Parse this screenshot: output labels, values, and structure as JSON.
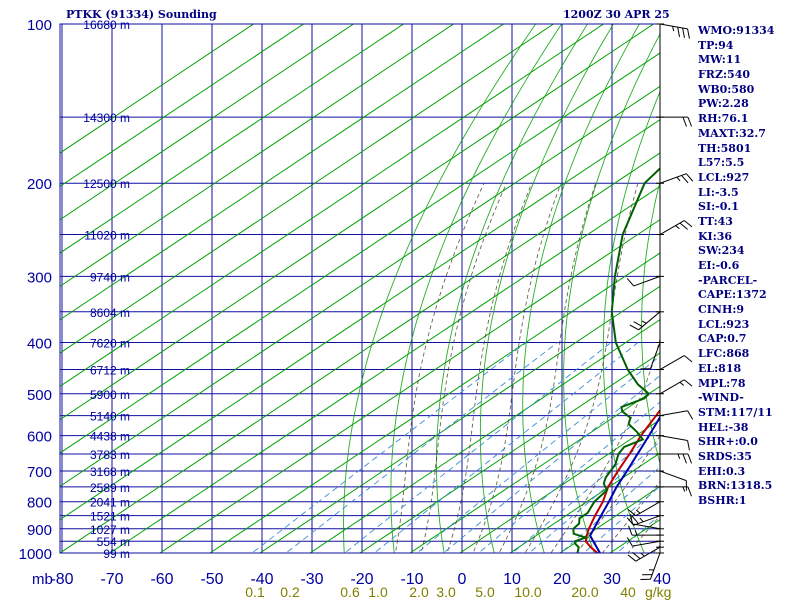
{
  "header": {
    "station": "PTKK (91334) Sounding",
    "time": "1200Z 30 APR 25"
  },
  "indices": [
    "WMO:91334",
    "TP:94",
    "MW:11",
    "FRZ:540",
    "WB0:580",
    "PW:2.28",
    "RH:76.1",
    "MAXT:32.7",
    "TH:5801",
    "L57:5.5",
    "LCL:927",
    "LI:-3.5",
    "SI:-0.1",
    "TT:43",
    "KI:36",
    "SW:234",
    "EI:-0.6",
    "-PARCEL-",
    "CAPE:1372",
    "CINH:9",
    "LCL:923",
    "CAP:0.7",
    "LFC:868",
    "EL:818",
    "MPL:78",
    "-WIND-",
    "STM:117/11",
    "HEL:-38",
    "SHR+:0.0",
    "SRDS:35",
    "EHI:0.3",
    "BRN:1318.5",
    "BSHR:1"
  ],
  "chart_data": {
    "type": "line",
    "chart_kind": "skew-T log-P sounding",
    "xlabel": "",
    "ylabel": "mb",
    "pressure_axis": {
      "scale": "log",
      "range": [
        1000,
        100
      ],
      "ticks": [
        "100",
        "200",
        "300",
        "400",
        "500",
        "600",
        "700",
        "800",
        "900",
        "1000"
      ]
    },
    "temperature_axis": {
      "unit": "°C",
      "range": [
        -80,
        40
      ],
      "ticks": [
        "-80",
        "-70",
        "-60",
        "-50",
        "-40",
        "-30",
        "-20",
        "-10",
        "0",
        "10",
        "20",
        "30",
        "40"
      ]
    },
    "mixing_ratio_axis": {
      "unit": "g/kg",
      "ticks": [
        "0.1",
        "0.2",
        "0.6",
        "1.0",
        "2.0",
        "3.0",
        "5.0",
        "10.0",
        "20.0"
      ]
    },
    "height_labels": [
      {
        "p": 100,
        "label": "16680 m"
      },
      {
        "p": 150,
        "label": "14300 m"
      },
      {
        "p": 200,
        "label": "12500 m"
      },
      {
        "p": 250,
        "label": "11020 m"
      },
      {
        "p": 300,
        "label": "9740 m"
      },
      {
        "p": 350,
        "label": "8604 m"
      },
      {
        "p": 400,
        "label": "7620 m"
      },
      {
        "p": 450,
        "label": "6712 m"
      },
      {
        "p": 500,
        "label": "5900 m"
      },
      {
        "p": 550,
        "label": "5140 m"
      },
      {
        "p": 600,
        "label": "4438 m"
      },
      {
        "p": 650,
        "label": "3783 m"
      },
      {
        "p": 700,
        "label": "3168 m"
      },
      {
        "p": 750,
        "label": "2589 m"
      },
      {
        "p": 800,
        "label": "2041 m"
      },
      {
        "p": 850,
        "label": "1521 m"
      },
      {
        "p": 900,
        "label": "1027 m"
      },
      {
        "p": 950,
        "label": "554 m"
      },
      {
        "p": 1000,
        "label": "99 m"
      }
    ],
    "series": [
      {
        "key": "temperature",
        "color": "#c00000",
        "points": [
          {
            "p": 1000,
            "t": 27.5
          },
          {
            "p": 975,
            "t": 24.4
          },
          {
            "p": 950,
            "t": 21.6
          },
          {
            "p": 925,
            "t": 20.0
          },
          {
            "p": 900,
            "t": 18.5
          },
          {
            "p": 850,
            "t": 15.8
          },
          {
            "p": 800,
            "t": 13.2
          },
          {
            "p": 750,
            "t": 9.8
          },
          {
            "p": 700,
            "t": 7.0
          },
          {
            "p": 650,
            "t": 4.2
          },
          {
            "p": 600,
            "t": 1.0
          },
          {
            "p": 550,
            "t": -2.0
          },
          {
            "p": 500,
            "t": -5.2
          },
          {
            "p": 450,
            "t": -9.5
          },
          {
            "p": 400,
            "t": -14.5
          },
          {
            "p": 350,
            "t": -20.0
          },
          {
            "p": 300,
            "t": -27.0
          },
          {
            "p": 250,
            "t": -37.0
          },
          {
            "p": 200,
            "t": -50.0
          },
          {
            "p": 150,
            "t": -65.0
          },
          {
            "p": 100,
            "t": -82.0
          }
        ]
      },
      {
        "key": "dewpoint",
        "color": "#006000",
        "points": [
          {
            "p": 1000,
            "t": 23.5
          },
          {
            "p": 975,
            "t": 22.0
          },
          {
            "p": 960,
            "t": 20.2
          },
          {
            "p": 950,
            "t": 19.5
          },
          {
            "p": 935,
            "t": 20.5
          },
          {
            "p": 920,
            "t": 17.0
          },
          {
            "p": 900,
            "t": 15.4
          },
          {
            "p": 880,
            "t": 15.0
          },
          {
            "p": 860,
            "t": 13.5
          },
          {
            "p": 840,
            "t": 13.5
          },
          {
            "p": 800,
            "t": 11.5
          },
          {
            "p": 760,
            "t": 10.5
          },
          {
            "p": 740,
            "t": 8.0
          },
          {
            "p": 720,
            "t": 6.5
          },
          {
            "p": 700,
            "t": 5.5
          },
          {
            "p": 680,
            "t": 4.5
          },
          {
            "p": 650,
            "t": 2.0
          },
          {
            "p": 630,
            "t": 1.0
          },
          {
            "p": 610,
            "t": 2.5
          },
          {
            "p": 590,
            "t": -1.0
          },
          {
            "p": 580,
            "t": -3.0
          },
          {
            "p": 570,
            "t": -5.0
          },
          {
            "p": 555,
            "t": -6.5
          },
          {
            "p": 540,
            "t": -10.0
          },
          {
            "p": 530,
            "t": -11.5
          },
          {
            "p": 510,
            "t": -9.5
          },
          {
            "p": 500,
            "t": -10.0
          },
          {
            "p": 480,
            "t": -15.0
          },
          {
            "p": 450,
            "t": -21.5
          },
          {
            "p": 400,
            "t": -32.0
          },
          {
            "p": 350,
            "t": -42.0
          },
          {
            "p": 300,
            "t": -52.0
          },
          {
            "p": 250,
            "t": -63.0
          },
          {
            "p": 200,
            "t": -74.0
          },
          {
            "p": 150,
            "t": -80.0
          },
          {
            "p": 120,
            "t": -85.0
          }
        ]
      },
      {
        "key": "parcel",
        "color": "#0000b0",
        "points": [
          {
            "p": 1000,
            "t": 28.0
          },
          {
            "p": 927,
            "t": 20.8
          },
          {
            "p": 900,
            "t": 19.5
          },
          {
            "p": 850,
            "t": 17.0
          },
          {
            "p": 800,
            "t": 14.4
          },
          {
            "p": 750,
            "t": 11.5
          },
          {
            "p": 700,
            "t": 8.8
          },
          {
            "p": 650,
            "t": 5.8
          },
          {
            "p": 600,
            "t": 2.6
          },
          {
            "p": 550,
            "t": -1.0
          },
          {
            "p": 500,
            "t": -4.6
          },
          {
            "p": 450,
            "t": -8.8
          },
          {
            "p": 400,
            "t": -13.6
          },
          {
            "p": 350,
            "t": -19.0
          },
          {
            "p": 300,
            "t": -26.0
          },
          {
            "p": 250,
            "t": -35.0
          },
          {
            "p": 200,
            "t": -49.0
          },
          {
            "p": 150,
            "t": -67.0
          },
          {
            "p": 100,
            "t": -87.0
          }
        ]
      }
    ],
    "wind_profile": [
      {
        "p": 1000,
        "dir": 200,
        "spd": 15
      },
      {
        "p": 975,
        "dir": 240,
        "spd": 15
      },
      {
        "p": 950,
        "dir": 260,
        "spd": 10
      },
      {
        "p": 925,
        "dir": 270,
        "spd": 5
      },
      {
        "p": 900,
        "dir": 280,
        "spd": 10
      },
      {
        "p": 850,
        "dir": 250,
        "spd": 15
      },
      {
        "p": 800,
        "dir": 240,
        "spd": 5
      },
      {
        "p": 750,
        "dir": 90,
        "spd": 5
      },
      {
        "p": 700,
        "dir": 110,
        "spd": 10
      },
      {
        "p": 650,
        "dir": 90,
        "spd": 15
      },
      {
        "p": 600,
        "dir": 100,
        "spd": 10
      },
      {
        "p": 550,
        "dir": 80,
        "spd": 10
      },
      {
        "p": 500,
        "dir": 60,
        "spd": 5
      },
      {
        "p": 450,
        "dir": 60,
        "spd": 10
      },
      {
        "p": 400,
        "dir": 200,
        "spd": 10
      },
      {
        "p": 350,
        "dir": 230,
        "spd": 15
      },
      {
        "p": 300,
        "dir": 250,
        "spd": 10
      },
      {
        "p": 250,
        "dir": 60,
        "spd": 15
      },
      {
        "p": 200,
        "dir": 70,
        "spd": 15
      },
      {
        "p": 150,
        "dir": 90,
        "spd": 20
      },
      {
        "p": 100,
        "dir": 100,
        "spd": 25
      }
    ],
    "colors": {
      "grid": "#1010a0",
      "dry_adiabat": "#00a000",
      "moist_adiabat": "#404020",
      "mixing_ratio": "#3c8cd8",
      "axis_labels": "#0000a0",
      "mixing_labels": "#808000"
    }
  }
}
